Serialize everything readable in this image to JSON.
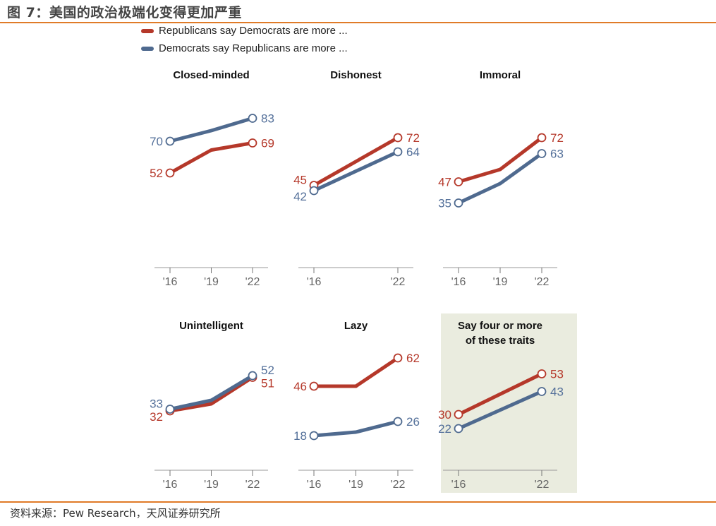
{
  "figure_title": "图 7：美国的政治极端化变得更加严重",
  "source": "资料来源：Pew Research，天风证券研究所",
  "colors": {
    "republicans": "#b5382a",
    "democrats": "#4f6a8f",
    "rule": "#e07b28",
    "highlight_bg": "#eaecdf"
  },
  "chart_data": {
    "type": "line",
    "legend": [
      {
        "name": "Republicans say Democrats are more ...",
        "color": "#b5382a"
      },
      {
        "name": "Democrats say Republicans are more ...",
        "color": "#4f6a8f"
      }
    ],
    "legend_position": "top",
    "ylim": [
      0,
      100
    ],
    "grid": false,
    "panels": [
      {
        "title": "Closed-minded",
        "x": [
          "'16",
          "'19",
          "'22"
        ],
        "series": [
          {
            "name": "Republicans say Democrats are more ...",
            "values": [
              52,
              65,
              69
            ],
            "labels": [
              "52",
              "",
              "69"
            ]
          },
          {
            "name": "Democrats say Republicans are more ...",
            "values": [
              70,
              76,
              83
            ],
            "labels": [
              "70",
              "",
              "83"
            ]
          }
        ]
      },
      {
        "title": "Dishonest",
        "x": [
          "'16",
          "'22"
        ],
        "series": [
          {
            "name": "Republicans say Democrats are more ...",
            "values": [
              45,
              72
            ],
            "labels": [
              "45",
              "72"
            ]
          },
          {
            "name": "Democrats say Republicans are more ...",
            "values": [
              42,
              64
            ],
            "labels": [
              "42",
              "64"
            ]
          }
        ]
      },
      {
        "title": "Immoral",
        "x": [
          "'16",
          "'19",
          "'22"
        ],
        "series": [
          {
            "name": "Republicans say Democrats are more ...",
            "values": [
              47,
              54,
              72
            ],
            "labels": [
              "47",
              "",
              "72"
            ]
          },
          {
            "name": "Democrats say Republicans are more ...",
            "values": [
              35,
              46,
              63
            ],
            "labels": [
              "35",
              "",
              "63"
            ]
          }
        ]
      },
      {
        "title": "Unintelligent",
        "x": [
          "'16",
          "'19",
          "'22"
        ],
        "series": [
          {
            "name": "Republicans say Democrats are more ...",
            "values": [
              32,
              36,
              51
            ],
            "labels": [
              "32",
              "",
              "51"
            ]
          },
          {
            "name": "Democrats say Republicans are more ...",
            "values": [
              33,
              38,
              52
            ],
            "labels": [
              "33",
              "",
              "52"
            ]
          }
        ]
      },
      {
        "title": "Lazy",
        "x": [
          "'16",
          "'19",
          "'22"
        ],
        "series": [
          {
            "name": "Republicans say Democrats are more ...",
            "values": [
              46,
              46,
              62
            ],
            "labels": [
              "46",
              "",
              "62"
            ]
          },
          {
            "name": "Democrats say Republicans are more ...",
            "values": [
              18,
              20,
              26
            ],
            "labels": [
              "18",
              "",
              "26"
            ]
          }
        ]
      },
      {
        "title": "Say four or more of these traits",
        "title_lines": [
          "Say four or more",
          "of these traits"
        ],
        "highlighted": true,
        "x": [
          "'16",
          "'22"
        ],
        "series": [
          {
            "name": "Republicans say Democrats are more ...",
            "values": [
              30,
              53
            ],
            "labels": [
              "30",
              "53"
            ]
          },
          {
            "name": "Democrats say Republicans are more ...",
            "values": [
              22,
              43
            ],
            "labels": [
              "22",
              "43"
            ]
          }
        ]
      }
    ]
  }
}
